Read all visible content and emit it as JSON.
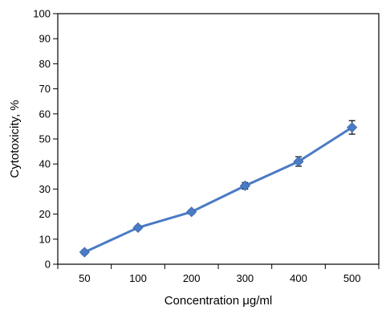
{
  "chart_data": {
    "type": "line",
    "title": "",
    "xlabel": "Concentration μg/ml",
    "ylabel": "Cytotoxicity, %",
    "categories": [
      "50",
      "100",
      "200",
      "300",
      "400",
      "500"
    ],
    "series": [
      {
        "values": [
          4.8,
          14.6,
          20.9,
          31.3,
          41.0,
          54.6
        ],
        "errors": [
          0.8,
          0.8,
          0.8,
          1.3,
          1.9,
          2.7
        ],
        "color": "#4a7bc4",
        "marker": "diamond"
      }
    ],
    "ylim": [
      0,
      100
    ],
    "yticks": [
      "0",
      "10",
      "20",
      "30",
      "40",
      "50",
      "60",
      "70",
      "80",
      "90",
      "100"
    ],
    "grid": false,
    "legend": "none"
  }
}
